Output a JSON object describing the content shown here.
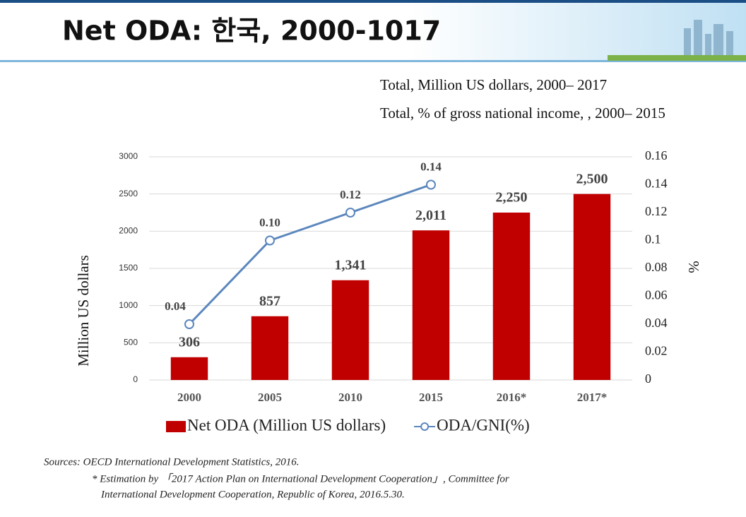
{
  "header": {
    "title": "Net ODA: 한국, 2000-1017"
  },
  "chart_data": {
    "type": "bar_line",
    "subtitles": [
      "Total, Million US  dollars, 2000– 2017",
      "Total, % of gross national income, , 2000– 2015"
    ],
    "categories": [
      "2000",
      "2005",
      "2010",
      "2015",
      "2016*",
      "2017*"
    ],
    "series": [
      {
        "name": "Net ODA (Million US dollars)",
        "color": "#c00000",
        "type": "bar",
        "values": [
          306,
          857,
          1341,
          2011,
          2250,
          2500
        ],
        "value_labels": [
          "306",
          "857",
          "1,341",
          "2,011",
          "2,250",
          "2,500"
        ]
      },
      {
        "name": "ODA/GNI(%)",
        "color": "#5b87bd",
        "type": "line",
        "axis": "y2",
        "values": [
          0.04,
          0.1,
          0.12,
          0.14,
          null,
          null
        ],
        "value_labels": [
          "0.04",
          "0.10",
          "0.12",
          "0.14",
          null,
          null
        ]
      }
    ],
    "ylabel": "Million US dollars",
    "y2label": "%",
    "ylim": [
      0,
      3000
    ],
    "yticks": [
      0,
      500,
      1000,
      1500,
      2000,
      2500,
      3000
    ],
    "y2lim": [
      0,
      0.16
    ],
    "y2ticks": [
      0,
      0.02,
      0.04,
      0.06,
      0.08,
      0.1,
      0.12,
      0.14,
      0.16
    ],
    "grid": true,
    "legend": "bottom"
  },
  "notes": [
    "Sources:  OECD International Development Statistics, 2016.",
    "* Estimation by  「2017 Action Plan on International Development Cooperation」,  Committee for",
    "International  Development Cooperation, Republic of Korea, 2016.5.30."
  ]
}
